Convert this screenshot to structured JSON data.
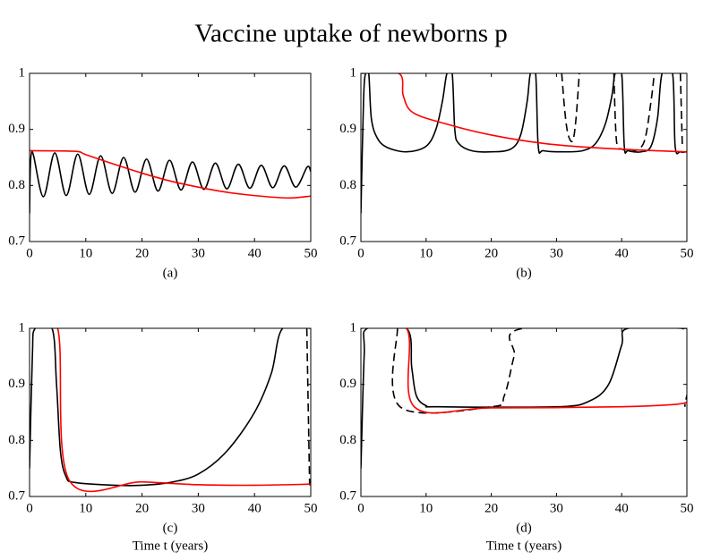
{
  "title": "Vaccine uptake of newborns p",
  "chart_data": [
    {
      "type": "line",
      "label": "(a)",
      "xlim": [
        0,
        50
      ],
      "ylim": [
        0.7,
        1
      ],
      "xticks": [
        0,
        10,
        20,
        30,
        40,
        50
      ],
      "yticks": [
        0.7,
        0.8,
        0.9,
        1
      ],
      "series": [
        {
          "color": "#000000",
          "dashed": false,
          "x": [
            0,
            0.4,
            2.44,
            4.48,
            6.52,
            8.56,
            10.6,
            12.64,
            14.68,
            16.72,
            18.76,
            20.8,
            22.84,
            24.88,
            26.92,
            28.96,
            31,
            33.04,
            35.08,
            37.12,
            39.16,
            41.2,
            43.24,
            45.28,
            47.32,
            49.36,
            50
          ],
          "values": [
            0.75,
            0.86,
            0.78,
            0.858,
            0.782,
            0.856,
            0.784,
            0.853,
            0.786,
            0.85,
            0.788,
            0.847,
            0.79,
            0.845,
            0.792,
            0.842,
            0.793,
            0.84,
            0.794,
            0.838,
            0.795,
            0.836,
            0.796,
            0.835,
            0.797,
            0.833,
            0.825
          ]
        },
        {
          "color": "#ff0000",
          "dashed": false,
          "x": [
            0,
            8,
            10,
            15,
            20,
            25,
            30,
            35,
            40,
            45,
            47,
            50
          ],
          "values": [
            0.862,
            0.861,
            0.855,
            0.838,
            0.822,
            0.808,
            0.797,
            0.788,
            0.782,
            0.778,
            0.778,
            0.781
          ]
        }
      ]
    },
    {
      "type": "line",
      "label": "(b)",
      "xlim": [
        0,
        50
      ],
      "ylim": [
        0.7,
        1
      ],
      "xticks": [
        0,
        10,
        20,
        30,
        40,
        50
      ],
      "yticks": [
        0.7,
        0.8,
        0.9,
        1
      ],
      "series": [
        {
          "color": "#000000",
          "dashed": false,
          "x": [
            0,
            0.4,
            0.7,
            1.2,
            1.6,
            2.5,
            4,
            7,
            10,
            11.5,
            12.5,
            13.2,
            14,
            14.4,
            15,
            17,
            20,
            23,
            24.5,
            25.5,
            26,
            26.8,
            27.2,
            28,
            31,
            34,
            36,
            37.5,
            38.5,
            39,
            40,
            40.4,
            41,
            43,
            44.5,
            45.5,
            46.2,
            47.8,
            48.2,
            49,
            50
          ],
          "values": [
            0.75,
            0.95,
            1,
            1,
            0.92,
            0.885,
            0.868,
            0.86,
            0.87,
            0.9,
            0.95,
            1,
            1,
            0.9,
            0.875,
            0.862,
            0.86,
            0.865,
            0.89,
            0.95,
            1,
            1,
            0.87,
            0.862,
            0.86,
            0.862,
            0.875,
            0.91,
            0.96,
            1,
            1,
            0.87,
            0.862,
            0.86,
            0.87,
            0.92,
            1,
            1,
            0.87,
            0.86,
            0.86
          ]
        },
        {
          "color": "#000000",
          "dashed": true,
          "x": [
            30.8,
            31.3,
            31.8,
            32.5,
            33,
            33.5,
            36,
            38.8,
            39.2,
            40,
            42,
            43.5,
            44.5,
            45,
            47,
            49,
            49.3
          ],
          "values": [
            1,
            0.93,
            0.89,
            0.88,
            0.92,
            1,
            null,
            1,
            0.88,
            0.865,
            0.862,
            0.88,
            0.95,
            1,
            null,
            1,
            0.87
          ]
        },
        {
          "color": "#ff0000",
          "dashed": false,
          "x": [
            0,
            5.8,
            6.5,
            8,
            13,
            20,
            28,
            35,
            43,
            50
          ],
          "values": [
            1,
            1,
            0.96,
            0.93,
            0.91,
            0.89,
            0.875,
            0.868,
            0.863,
            0.86
          ]
        }
      ]
    },
    {
      "type": "line",
      "label": "(c)",
      "xlabel": "Time t (years)",
      "xlim": [
        0,
        50
      ],
      "ylim": [
        0.7,
        1
      ],
      "xticks": [
        0,
        10,
        20,
        30,
        40,
        50
      ],
      "yticks": [
        0.7,
        0.8,
        0.9,
        1
      ],
      "series": [
        {
          "color": "#000000",
          "dashed": false,
          "x": [
            0,
            0.5,
            1,
            4,
            4.8,
            5.5,
            6.5,
            8,
            15,
            20,
            25,
            30,
            35,
            40,
            43,
            45,
            50
          ],
          "values": [
            0.75,
            0.95,
            1,
            1,
            0.9,
            0.78,
            0.735,
            0.725,
            0.72,
            0.72,
            0.725,
            0.74,
            0.78,
            0.85,
            0.92,
            1,
            1
          ]
        },
        {
          "color": "#000000",
          "dashed": true,
          "x": [
            49.3,
            49.8
          ],
          "values": [
            1,
            0.72
          ]
        },
        {
          "color": "#ff0000",
          "dashed": false,
          "x": [
            0,
            5,
            7,
            20,
            30,
            40,
            50
          ],
          "values": [
            1,
            1,
            0.73,
            0.726,
            0.721,
            0.72,
            0.722
          ]
        }
      ]
    },
    {
      "type": "line",
      "label": "(d)",
      "xlabel": "Time t (years)",
      "xlim": [
        0,
        50
      ],
      "ylim": [
        0.7,
        1
      ],
      "xticks": [
        0,
        10,
        20,
        30,
        40,
        50
      ],
      "yticks": [
        0.7,
        0.8,
        0.9,
        1
      ],
      "series": [
        {
          "color": "#000000",
          "dashed": false,
          "x": [
            0,
            0.5,
            1,
            7,
            7.8,
            8.5,
            10,
            12,
            30,
            35,
            38,
            40,
            41,
            50
          ],
          "values": [
            0.75,
            0.95,
            1,
            1,
            0.93,
            0.88,
            0.862,
            0.86,
            0.86,
            0.87,
            0.9,
            0.97,
            1,
            1
          ]
        },
        {
          "color": "#000000",
          "dashed": true,
          "x": [
            5.6,
            6,
            20,
            22,
            23.5,
            25,
            49.3,
            49.7
          ],
          "values": [
            1,
            0.86,
            0.86,
            0.88,
            0.95,
            1,
            1,
            0.86
          ]
        },
        {
          "color": "#ff0000",
          "dashed": false,
          "x": [
            0,
            7,
            8.2,
            20,
            40,
            48,
            50
          ],
          "values": [
            1,
            1,
            0.86,
            0.858,
            0.86,
            0.864,
            0.868
          ]
        }
      ]
    }
  ]
}
